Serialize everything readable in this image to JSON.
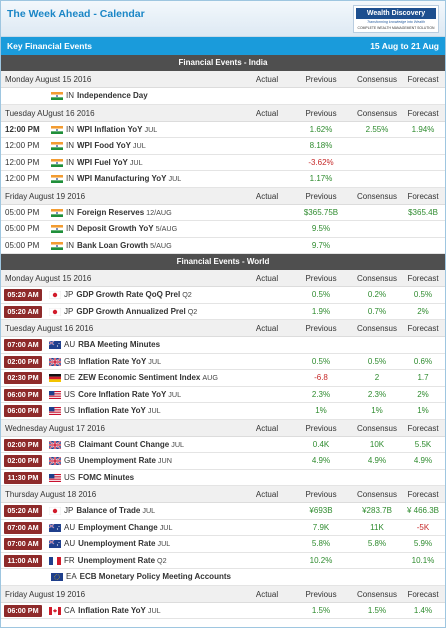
{
  "header": {
    "title": "The Week Ahead - Calendar",
    "logo_name": "Wealth Discovery",
    "logo_tagline": "Transforming knowledge into Wealth",
    "logo_sub": "COMPLETE WEALTH MANAGEMENT SOLUTION",
    "band_label": "Key Financial Events",
    "date_range": "15 Aug to 21 Aug"
  },
  "colors": {
    "band": "#1a9bdb",
    "section": "#4f4f4f",
    "time_badge": "#8e2a2a",
    "better": "#2e8b2e",
    "worse": "#c62828"
  },
  "columns": {
    "actual": "Actual",
    "previous": "Previous",
    "consensus": "Consensus",
    "forecast": "Forecast"
  },
  "sections": [
    {
      "title": "Financial Events - India",
      "days": [
        {
          "date": "Monday August 15 2016",
          "events": [
            {
              "time": "",
              "time_style": "plain",
              "flag": "india-flag",
              "country": "IN",
              "name": "Independence Day",
              "period": "",
              "actual": "",
              "previous": "",
              "previous_color": "dark",
              "consensus": "",
              "consensus_color": "dark",
              "forecast": "",
              "forecast_color": "dark"
            }
          ]
        },
        {
          "date": "Tuesday AUgust 16 2016",
          "events": [
            {
              "time": "12:00 PM",
              "time_style": "bold",
              "flag": "india-flag",
              "country": "IN",
              "name": "WPI Inflation YoY",
              "period": "JUL",
              "actual": "",
              "previous": "1.62%",
              "previous_color": "green",
              "consensus": "2.55%",
              "consensus_color": "green",
              "forecast": "1.94%",
              "forecast_color": "green"
            },
            {
              "time": "12:00 PM",
              "time_style": "plain",
              "flag": "india-flag",
              "country": "IN",
              "name": "WPI Food YoY",
              "period": "JUL",
              "actual": "",
              "previous": "8.18%",
              "previous_color": "green",
              "consensus": "",
              "consensus_color": "dark",
              "forecast": "",
              "forecast_color": "dark"
            },
            {
              "time": "12:00 PM",
              "time_style": "plain",
              "flag": "india-flag",
              "country": "IN",
              "name": "WPI Fuel YoY",
              "period": "JUL",
              "actual": "",
              "previous": "-3.62%",
              "previous_color": "red",
              "consensus": "",
              "consensus_color": "dark",
              "forecast": "",
              "forecast_color": "dark"
            },
            {
              "time": "12:00 PM",
              "time_style": "plain",
              "flag": "india-flag",
              "country": "IN",
              "name": "WPI Manufacturing YoY",
              "period": "JUL",
              "actual": "",
              "previous": "1.17%",
              "previous_color": "green",
              "consensus": "",
              "consensus_color": "dark",
              "forecast": "",
              "forecast_color": "dark"
            }
          ]
        },
        {
          "date": "Friday August 19 2016",
          "events": [
            {
              "time": "05:00 PM",
              "time_style": "plain",
              "flag": "india-flag",
              "country": "IN",
              "name": "Foreign Reserves",
              "period": "12/AUG",
              "actual": "",
              "previous": "$365.75B",
              "previous_color": "green",
              "consensus": "",
              "consensus_color": "dark",
              "forecast": "$365.4B",
              "forecast_color": "green"
            },
            {
              "time": "05:00 PM",
              "time_style": "plain",
              "flag": "india-flag",
              "country": "IN",
              "name": "Deposit Growth YoY",
              "period": "5/AUG",
              "actual": "",
              "previous": "9.5%",
              "previous_color": "green",
              "consensus": "",
              "consensus_color": "dark",
              "forecast": "",
              "forecast_color": "dark"
            },
            {
              "time": "05:00 PM",
              "time_style": "plain",
              "flag": "india-flag",
              "country": "IN",
              "name": "Bank Loan Growth",
              "period": "5/AUG",
              "actual": "",
              "previous": "9.7%",
              "previous_color": "green",
              "consensus": "",
              "consensus_color": "dark",
              "forecast": "",
              "forecast_color": "dark"
            }
          ]
        }
      ]
    },
    {
      "title": "Financial Events - World",
      "days": [
        {
          "date": "Monday August 15 2016",
          "events": [
            {
              "time": "05:20 AM",
              "time_style": "badge",
              "flag": "japan-flag",
              "country": "JP",
              "name": "GDP Growth Rate QoQ Prel",
              "period": "Q2",
              "actual": "",
              "previous": "0.5%",
              "previous_color": "green",
              "consensus": "0.2%",
              "consensus_color": "green",
              "forecast": "0.5%",
              "forecast_color": "green"
            },
            {
              "time": "05:20 AM",
              "time_style": "badge",
              "flag": "japan-flag",
              "country": "JP",
              "name": "GDP Growth Annualized Prel",
              "period": "Q2",
              "actual": "",
              "previous": "1.9%",
              "previous_color": "green",
              "consensus": "0.7%",
              "consensus_color": "green",
              "forecast": "2%",
              "forecast_color": "green"
            }
          ]
        },
        {
          "date": "Tuesday August 16 2016",
          "events": [
            {
              "time": "07:00 AM",
              "time_style": "badge",
              "flag": "australia-flag",
              "country": "AU",
              "name": "RBA Meeting Minutes",
              "period": "",
              "actual": "",
              "previous": "",
              "previous_color": "dark",
              "consensus": "",
              "consensus_color": "dark",
              "forecast": "",
              "forecast_color": "dark"
            },
            {
              "time": "02:00 PM",
              "time_style": "badge",
              "flag": "uk-flag",
              "country": "GB",
              "name": "Inflation Rate YoY",
              "period": "JUL",
              "actual": "",
              "previous": "0.5%",
              "previous_color": "green",
              "consensus": "0.5%",
              "consensus_color": "green",
              "forecast": "0.6%",
              "forecast_color": "green"
            },
            {
              "time": "02:30 PM",
              "time_style": "badge",
              "flag": "germany-flag",
              "country": "DE",
              "name": "ZEW Economic Sentiment Index",
              "period": "AUG",
              "actual": "",
              "previous": "-6.8",
              "previous_color": "red",
              "consensus": "2",
              "consensus_color": "green",
              "forecast": "1.7",
              "forecast_color": "green"
            },
            {
              "time": "06:00 PM",
              "time_style": "badge",
              "flag": "us-flag",
              "country": "US",
              "name": "Core Inflation Rate YoY",
              "period": "JUL",
              "actual": "",
              "previous": "2.3%",
              "previous_color": "green",
              "consensus": "2.3%",
              "consensus_color": "green",
              "forecast": "2%",
              "forecast_color": "green"
            },
            {
              "time": "06:00 PM",
              "time_style": "badge",
              "flag": "us-flag",
              "country": "US",
              "name": "Inflation Rate YoY",
              "period": "JUL",
              "actual": "",
              "previous": "1%",
              "previous_color": "green",
              "consensus": "1%",
              "consensus_color": "green",
              "forecast": "1%",
              "forecast_color": "green"
            }
          ]
        },
        {
          "date": "Wednesday August 17 2016",
          "events": [
            {
              "time": "02:00 PM",
              "time_style": "badge",
              "flag": "uk-flag",
              "country": "GB",
              "name": "Claimant Count Change",
              "period": "JUL",
              "actual": "",
              "previous": "0.4K",
              "previous_color": "green",
              "consensus": "10K",
              "consensus_color": "green",
              "forecast": "5.5K",
              "forecast_color": "green"
            },
            {
              "time": "02:00 PM",
              "time_style": "badge",
              "flag": "uk-flag",
              "country": "GB",
              "name": "Unemployment Rate",
              "period": "JUN",
              "actual": "",
              "previous": "4.9%",
              "previous_color": "green",
              "consensus": "4.9%",
              "consensus_color": "green",
              "forecast": "4.9%",
              "forecast_color": "green"
            },
            {
              "time": "11:30 PM",
              "time_style": "badge",
              "flag": "us-flag",
              "country": "US",
              "name": "FOMC Minutes",
              "period": "",
              "actual": "",
              "previous": "",
              "previous_color": "dark",
              "consensus": "",
              "consensus_color": "dark",
              "forecast": "",
              "forecast_color": "dark"
            }
          ]
        },
        {
          "date": "Thursday August 18 2016",
          "events": [
            {
              "time": "05:20 AM",
              "time_style": "badge",
              "flag": "japan-flag",
              "country": "JP",
              "name": "Balance of Trade",
              "period": "JUL",
              "actual": "",
              "previous": "¥693B",
              "previous_color": "green",
              "consensus": "¥283.7B",
              "consensus_color": "green",
              "forecast": "¥ 466.3B",
              "forecast_color": "green"
            },
            {
              "time": "07:00 AM",
              "time_style": "badge",
              "flag": "australia-flag",
              "country": "AU",
              "name": "Employment Change",
              "period": "JUL",
              "actual": "",
              "previous": "7.9K",
              "previous_color": "green",
              "consensus": "11K",
              "consensus_color": "green",
              "forecast": "-5K",
              "forecast_color": "red"
            },
            {
              "time": "07:00 AM",
              "time_style": "badge",
              "flag": "australia-flag",
              "country": "AU",
              "name": "Unemployment Rate",
              "period": "JUL",
              "actual": "",
              "previous": "5.8%",
              "previous_color": "green",
              "consensus": "5.8%",
              "consensus_color": "green",
              "forecast": "5.9%",
              "forecast_color": "green"
            },
            {
              "time": "11:00 AM",
              "time_style": "badge",
              "flag": "france-flag",
              "country": "FR",
              "name": "Unemployment Rate",
              "period": "Q2",
              "actual": "",
              "previous": "10.2%",
              "previous_color": "green",
              "consensus": "",
              "consensus_color": "dark",
              "forecast": "10.1%",
              "forecast_color": "green"
            },
            {
              "time": "",
              "time_style": "plain",
              "flag": "eu-flag",
              "country": "EA",
              "name": "ECB Monetary Policy Meeting Accounts",
              "period": "",
              "actual": "",
              "previous": "",
              "previous_color": "dark",
              "consensus": "",
              "consensus_color": "dark",
              "forecast": "",
              "forecast_color": "dark"
            }
          ]
        },
        {
          "date": "Friday August 19 2016",
          "events": [
            {
              "time": "06:00 PM",
              "time_style": "badge",
              "flag": "canada-flag",
              "country": "CA",
              "name": "Inflation Rate YoY",
              "period": "JUL",
              "actual": "",
              "previous": "1.5%",
              "previous_color": "green",
              "consensus": "1.5%",
              "consensus_color": "green",
              "forecast": "1.4%",
              "forecast_color": "green"
            }
          ]
        }
      ]
    }
  ]
}
